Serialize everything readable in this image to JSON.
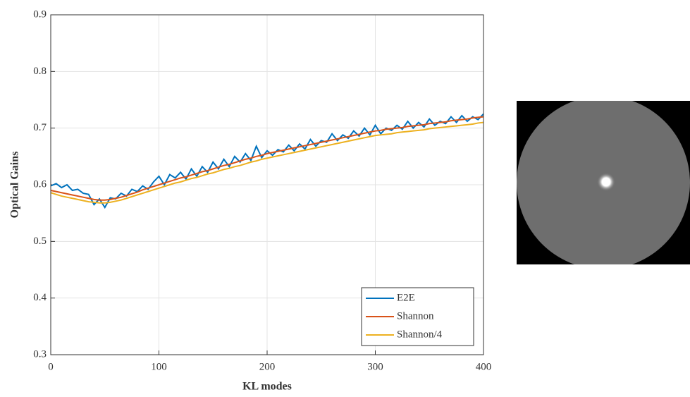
{
  "chart_data": {
    "type": "line",
    "xlabel": "KL modes",
    "ylabel": "Optical Gains",
    "xlim": [
      0,
      400
    ],
    "ylim": [
      0.3,
      0.9
    ],
    "xticks": [
      0,
      100,
      200,
      300,
      400
    ],
    "yticks": [
      0.3,
      0.4,
      0.5,
      0.6,
      0.7,
      0.8,
      0.9
    ],
    "grid": true,
    "legend": "lower right",
    "x": [
      0,
      5,
      10,
      15,
      20,
      25,
      30,
      35,
      40,
      45,
      50,
      55,
      60,
      65,
      70,
      75,
      80,
      85,
      90,
      95,
      100,
      105,
      110,
      115,
      120,
      125,
      130,
      135,
      140,
      145,
      150,
      155,
      160,
      165,
      170,
      175,
      180,
      185,
      190,
      195,
      200,
      205,
      210,
      215,
      220,
      225,
      230,
      235,
      240,
      245,
      250,
      255,
      260,
      265,
      270,
      275,
      280,
      285,
      290,
      295,
      300,
      305,
      310,
      315,
      320,
      325,
      330,
      335,
      340,
      345,
      350,
      355,
      360,
      365,
      370,
      375,
      380,
      385,
      390,
      395,
      400
    ],
    "series": [
      {
        "name": "E2E",
        "color": "#0072bd",
        "values": [
          0.598,
          0.602,
          0.595,
          0.6,
          0.59,
          0.592,
          0.585,
          0.583,
          0.565,
          0.575,
          0.56,
          0.577,
          0.575,
          0.585,
          0.58,
          0.592,
          0.588,
          0.598,
          0.592,
          0.605,
          0.615,
          0.6,
          0.618,
          0.612,
          0.622,
          0.61,
          0.628,
          0.615,
          0.632,
          0.622,
          0.64,
          0.628,
          0.645,
          0.632,
          0.65,
          0.64,
          0.655,
          0.643,
          0.668,
          0.648,
          0.66,
          0.652,
          0.662,
          0.658,
          0.67,
          0.66,
          0.672,
          0.663,
          0.68,
          0.668,
          0.678,
          0.675,
          0.69,
          0.678,
          0.688,
          0.682,
          0.695,
          0.686,
          0.7,
          0.688,
          0.705,
          0.69,
          0.7,
          0.696,
          0.705,
          0.698,
          0.712,
          0.7,
          0.71,
          0.702,
          0.716,
          0.705,
          0.712,
          0.708,
          0.72,
          0.71,
          0.722,
          0.712,
          0.72,
          0.715,
          0.725
        ]
      },
      {
        "name": "Shannon",
        "color": "#d95319",
        "values": [
          0.59,
          0.588,
          0.586,
          0.584,
          0.582,
          0.58,
          0.578,
          0.576,
          0.574,
          0.573,
          0.573,
          0.574,
          0.576,
          0.578,
          0.581,
          0.584,
          0.587,
          0.591,
          0.594,
          0.597,
          0.6,
          0.603,
          0.606,
          0.609,
          0.612,
          0.614,
          0.617,
          0.62,
          0.623,
          0.625,
          0.628,
          0.631,
          0.634,
          0.636,
          0.639,
          0.642,
          0.645,
          0.647,
          0.65,
          0.652,
          0.655,
          0.657,
          0.659,
          0.661,
          0.663,
          0.665,
          0.667,
          0.669,
          0.671,
          0.673,
          0.675,
          0.677,
          0.679,
          0.681,
          0.683,
          0.685,
          0.687,
          0.689,
          0.691,
          0.693,
          0.695,
          0.696,
          0.698,
          0.699,
          0.7,
          0.701,
          0.703,
          0.704,
          0.705,
          0.706,
          0.708,
          0.709,
          0.71,
          0.711,
          0.713,
          0.714,
          0.715,
          0.716,
          0.718,
          0.719,
          0.72
        ]
      },
      {
        "name": "Shannon/4",
        "color": "#edb120",
        "values": [
          0.586,
          0.583,
          0.58,
          0.578,
          0.576,
          0.574,
          0.572,
          0.57,
          0.569,
          0.568,
          0.568,
          0.569,
          0.571,
          0.573,
          0.576,
          0.579,
          0.582,
          0.585,
          0.588,
          0.591,
          0.594,
          0.597,
          0.6,
          0.603,
          0.605,
          0.608,
          0.611,
          0.613,
          0.616,
          0.619,
          0.621,
          0.624,
          0.627,
          0.629,
          0.632,
          0.634,
          0.637,
          0.64,
          0.642,
          0.645,
          0.647,
          0.649,
          0.651,
          0.653,
          0.655,
          0.657,
          0.659,
          0.661,
          0.663,
          0.665,
          0.667,
          0.669,
          0.671,
          0.673,
          0.675,
          0.677,
          0.679,
          0.681,
          0.683,
          0.685,
          0.687,
          0.688,
          0.689,
          0.69,
          0.692,
          0.693,
          0.694,
          0.695,
          0.696,
          0.697,
          0.699,
          0.7,
          0.701,
          0.702,
          0.703,
          0.704,
          0.705,
          0.706,
          0.707,
          0.709,
          0.71
        ]
      }
    ]
  }
}
